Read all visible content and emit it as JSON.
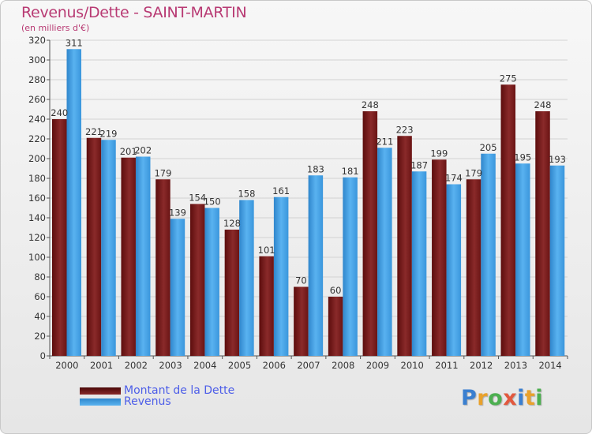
{
  "title": "Revenus/Dette - SAINT-MARTIN",
  "subtitle": "(en milliers d'€)",
  "logo": {
    "text": "Proxiti",
    "colors": [
      "#3a7fd0",
      "#e9a12b",
      "#4caf50",
      "#e2583e",
      "#3a7fd0",
      "#e9a12b",
      "#4caf50"
    ]
  },
  "legend": [
    {
      "label": "Montant de la Dette",
      "color": "#7a1a1a"
    },
    {
      "label": "Revenus",
      "color": "#3a9be0"
    }
  ],
  "chart_data": {
    "type": "bar",
    "categories": [
      "2000",
      "2001",
      "2002",
      "2003",
      "2004",
      "2005",
      "2006",
      "2007",
      "2008",
      "2009",
      "2010",
      "2011",
      "2012",
      "2013",
      "2014"
    ],
    "series": [
      {
        "name": "Montant de la Dette",
        "color": "#7a1a1a",
        "values": [
          240,
          221,
          201,
          179,
          154,
          128,
          101,
          70,
          60,
          248,
          223,
          199,
          179,
          275,
          248
        ]
      },
      {
        "name": "Revenus",
        "color": "#3a9be0",
        "values": [
          311,
          219,
          202,
          139,
          150,
          158,
          161,
          183,
          181,
          211,
          187,
          174,
          205,
          195,
          193
        ]
      }
    ],
    "yticks": [
      0,
      20,
      40,
      60,
      80,
      100,
      120,
      140,
      160,
      180,
      200,
      220,
      240,
      260,
      280,
      300,
      320
    ],
    "ylim": [
      0,
      320
    ],
    "grid": true
  }
}
